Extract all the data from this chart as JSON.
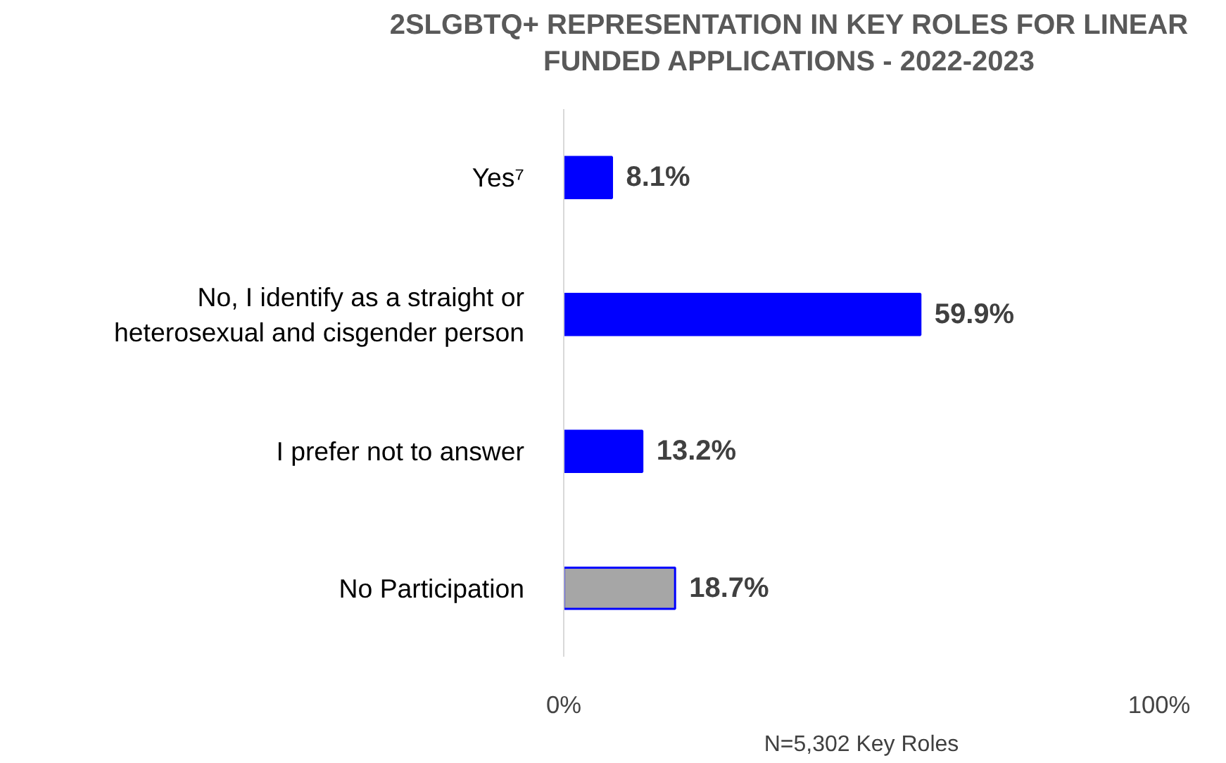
{
  "chart_data": {
    "type": "bar",
    "orientation": "horizontal",
    "title": "2SLGBTQ+ REPRESENTATION IN KEY ROLES FOR LINEAR FUNDED APPLICATIONS - 2022-2023",
    "categories": [
      "Yes⁷",
      "No, I identify as a straight or heterosexual and cisgender person",
      "I prefer not to answer",
      "No Participation"
    ],
    "values": [
      8.1,
      59.9,
      13.2,
      18.7
    ],
    "colors": [
      "#0000ff",
      "#0000ff",
      "#0000ff",
      "#a6a6a6"
    ],
    "value_labels": [
      "8.1%",
      "59.9%",
      "13.2%",
      "18.7%"
    ],
    "xlim": [
      0,
      100
    ],
    "xticks": [
      {
        "value": 0,
        "label": "0%"
      },
      {
        "value": 100,
        "label": "100%"
      }
    ],
    "grid": false,
    "annotations": [
      "N=5,302 Key Roles"
    ]
  }
}
